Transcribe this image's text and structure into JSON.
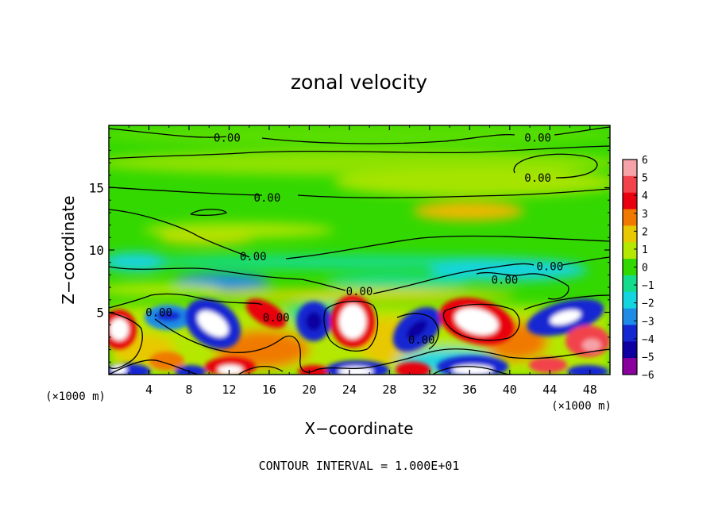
{
  "chart_data": {
    "type": "heatmap",
    "title": "zonal velocity",
    "xlabel": "X−coordinate",
    "ylabel": "Z−coordinate",
    "x_unit_left": "(×1000 m)",
    "x_unit_right": "(×1000 m)",
    "footer": "CONTOUR INTERVAL = 1.000E+01",
    "xlim": [
      0,
      50
    ],
    "ylim": [
      0,
      20
    ],
    "x_ticks": [
      "4",
      "8",
      "12",
      "16",
      "20",
      "24",
      "28",
      "32",
      "36",
      "40",
      "44",
      "48"
    ],
    "x_tick_values": [
      4,
      8,
      12,
      16,
      20,
      24,
      28,
      32,
      36,
      40,
      44,
      48
    ],
    "y_ticks": [
      "5",
      "10",
      "15"
    ],
    "y_tick_values": [
      5,
      10,
      15
    ],
    "colorbar": {
      "labels": [
        "6",
        "5",
        "4",
        "3",
        "2",
        "1",
        "0",
        "−1",
        "−2",
        "−3",
        "−4",
        "−5",
        "−6"
      ],
      "values": [
        6,
        5,
        4,
        3,
        2,
        1,
        0,
        -1,
        -2,
        -3,
        -4,
        -5,
        -6
      ],
      "colors": [
        "#f5a3a8",
        "#f2424c",
        "#e80010",
        "#f07a00",
        "#e8c800",
        "#b4e800",
        "#33d800",
        "#14dc8c",
        "#14d4e0",
        "#1e8ce6",
        "#1428d2",
        "#0e00a0",
        "#8a009c"
      ]
    },
    "contour_labels": [
      {
        "text": "0.00",
        "x": 11.8,
        "y": 19.0
      },
      {
        "text": "0.00",
        "x": 42.8,
        "y": 19.0
      },
      {
        "text": "0.00",
        "x": 42.8,
        "y": 15.8
      },
      {
        "text": "0.00",
        "x": 15.8,
        "y": 14.2
      },
      {
        "text": "0.00",
        "x": 14.4,
        "y": 9.5
      },
      {
        "text": "0.00",
        "x": 44.0,
        "y": 8.7
      },
      {
        "text": "0.00",
        "x": 39.5,
        "y": 7.6
      },
      {
        "text": "0.00",
        "x": 25.0,
        "y": 6.7
      },
      {
        "text": "0.00",
        "x": 5.0,
        "y": 5.0
      },
      {
        "text": "0.00",
        "x": 16.7,
        "y": 4.6
      },
      {
        "text": "0.00",
        "x": 31.2,
        "y": 2.8
      }
    ]
  }
}
